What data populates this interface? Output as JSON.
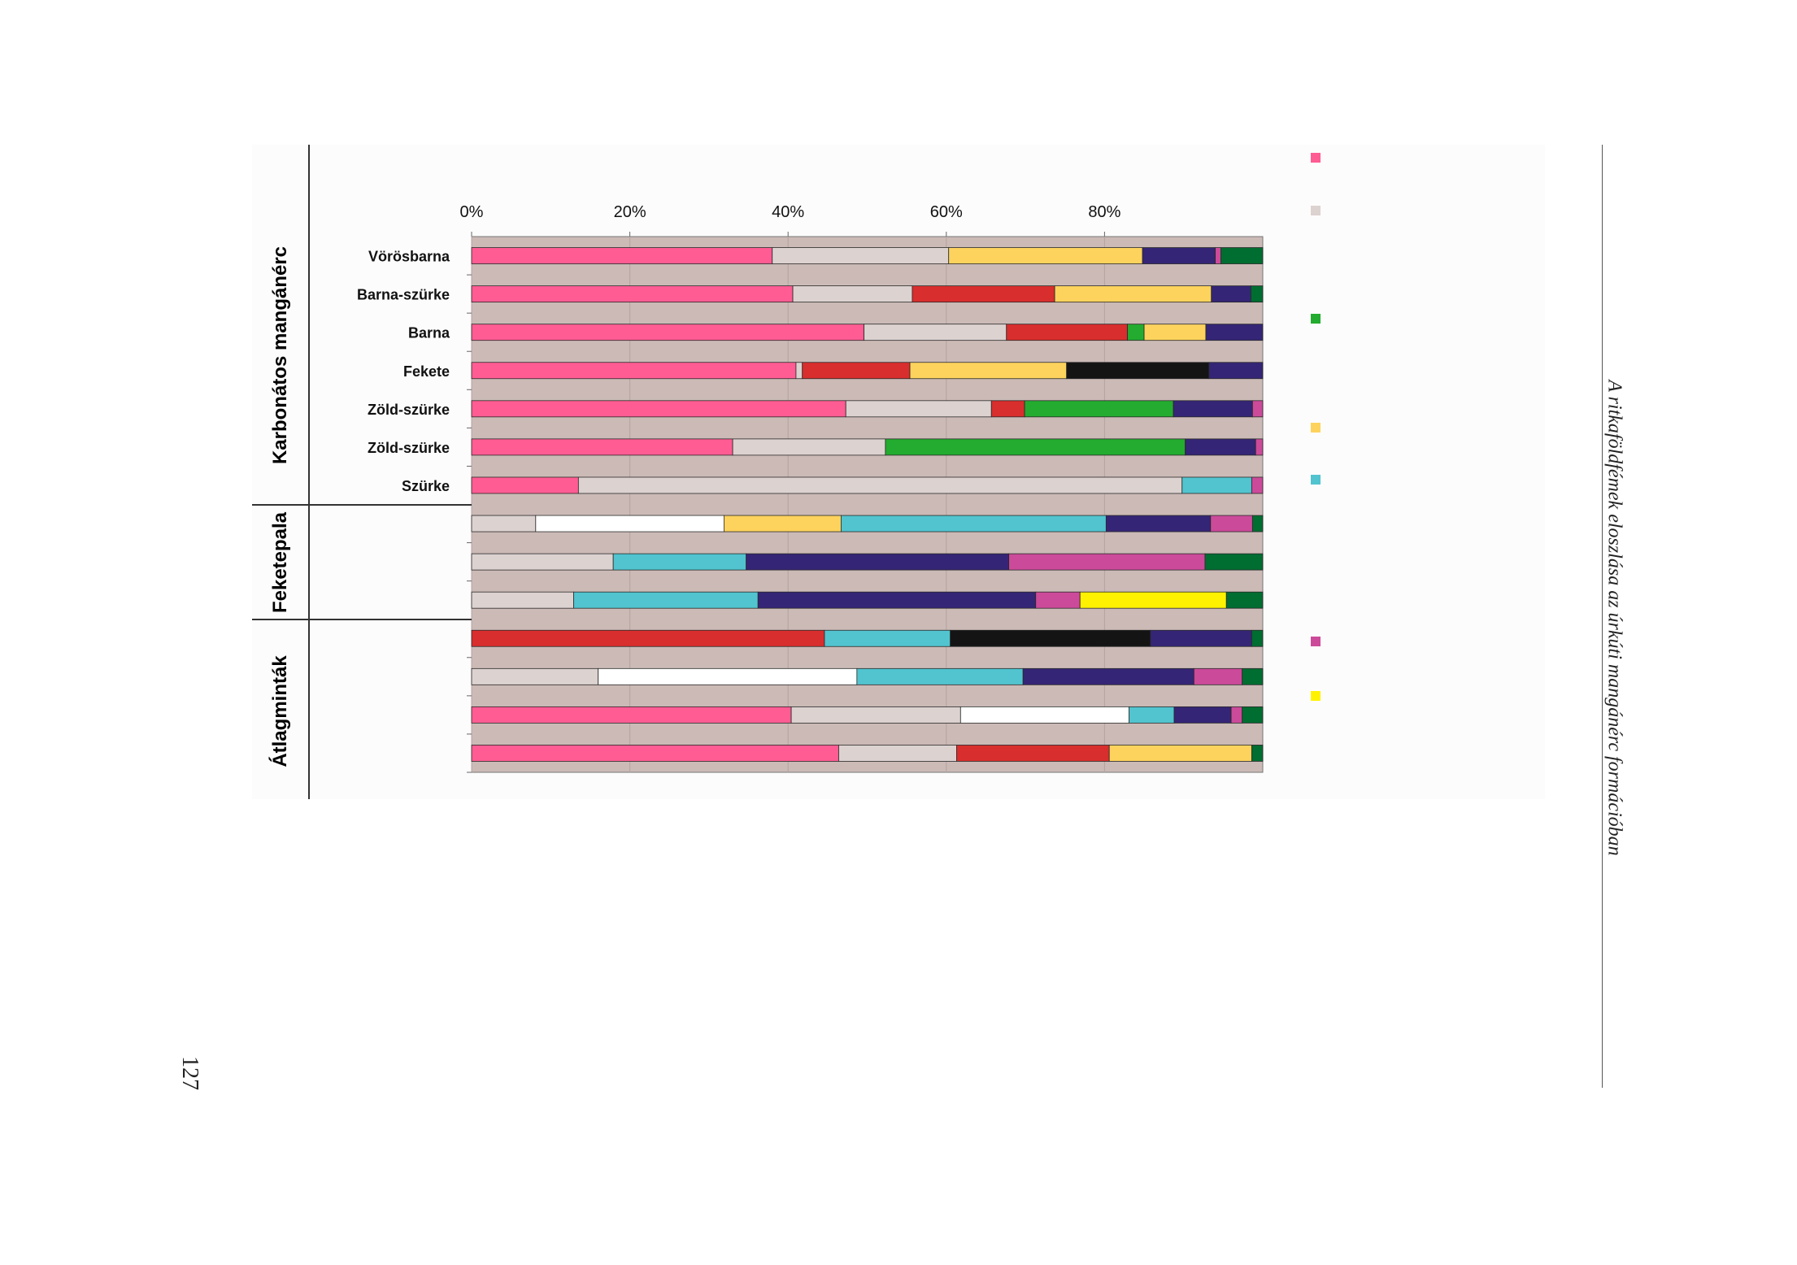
{
  "page": {
    "page_number": "127",
    "running_head": "A ritkaföldfémek eloszlása az úrkúti mangánérc formációban"
  },
  "groups": [
    {
      "label": "Karbonátos mangánérc"
    },
    {
      "label": "Feketepala"
    },
    {
      "label": "Átlagminták"
    }
  ],
  "legend": {
    "colors": [
      "#ff5c93",
      "#dcd2d0",
      "#23ac2f",
      "#fdd35d",
      "#51c4cf",
      "#cc4a9a",
      "#fff200"
    ]
  },
  "chart_data": {
    "type": "bar",
    "orientation": "horizontal",
    "stacked": "percent",
    "xlim": [
      0,
      100
    ],
    "xticks": [
      "0%",
      "20%",
      "40%",
      "60%",
      "80%"
    ],
    "grid": true,
    "plot_background": "#cbbab6",
    "categories": [
      "Vörösbarna",
      "Barna-szürke",
      "Barna",
      "Fekete",
      "Zöld-szürke",
      "Zöld-szürke",
      "Szürke",
      "",
      "",
      "",
      "",
      "",
      "",
      ""
    ],
    "rows": [
      {
        "segments": [
          {
            "color": "#ff5c93",
            "value": 38
          },
          {
            "color": "#dcd2d0",
            "value": 22.3
          },
          {
            "color": "#fdd35d",
            "value": 24.5
          },
          {
            "color": "#352576",
            "value": 9.2
          },
          {
            "color": "#cc4a9a",
            "value": 0.7
          },
          {
            "color": "#006d31",
            "value": 5.3
          }
        ]
      },
      {
        "segments": [
          {
            "color": "#ff5c93",
            "value": 40.6
          },
          {
            "color": "#dcd2d0",
            "value": 15.1
          },
          {
            "color": "#d82e2d",
            "value": 18
          },
          {
            "color": "#fdd35d",
            "value": 19.8
          },
          {
            "color": "#352576",
            "value": 5
          },
          {
            "color": "#006d31",
            "value": 1.5
          }
        ]
      },
      {
        "segments": [
          {
            "color": "#ff5c93",
            "value": 49.6
          },
          {
            "color": "#dcd2d0",
            "value": 18
          },
          {
            "color": "#d82e2d",
            "value": 15.3
          },
          {
            "color": "#23ac2f",
            "value": 2.1
          },
          {
            "color": "#fdd35d",
            "value": 7.8
          },
          {
            "color": "#352576",
            "value": 7.2
          }
        ]
      },
      {
        "segments": [
          {
            "color": "#ff5c93",
            "value": 41
          },
          {
            "color": "#dcd2d0",
            "value": 0.8
          },
          {
            "color": "#d82e2d",
            "value": 13.6
          },
          {
            "color": "#fdd35d",
            "value": 19.8
          },
          {
            "color": "#141414",
            "value": 18
          },
          {
            "color": "#352576",
            "value": 6.8
          }
        ]
      },
      {
        "segments": [
          {
            "color": "#ff5c93",
            "value": 47.3
          },
          {
            "color": "#dcd2d0",
            "value": 18.4
          },
          {
            "color": "#d82e2d",
            "value": 4.2
          },
          {
            "color": "#23ac2f",
            "value": 18.8
          },
          {
            "color": "#352576",
            "value": 10
          },
          {
            "color": "#cc4a9a",
            "value": 1.3
          }
        ]
      },
      {
        "segments": [
          {
            "color": "#ff5c93",
            "value": 33
          },
          {
            "color": "#dcd2d0",
            "value": 19.3
          },
          {
            "color": "#23ac2f",
            "value": 37.9
          },
          {
            "color": "#352576",
            "value": 8.9
          },
          {
            "color": "#cc4a9a",
            "value": 0.9
          }
        ]
      },
      {
        "segments": [
          {
            "color": "#ff5c93",
            "value": 13.5
          },
          {
            "color": "#dcd2d0",
            "value": 76.3
          },
          {
            "color": "#51c4cf",
            "value": 8.8
          },
          {
            "color": "#cc4a9a",
            "value": 1.4
          }
        ]
      },
      {
        "segments": [
          {
            "color": "#dcd2d0",
            "value": 8.1
          },
          {
            "color": "#ffffff",
            "value": 23.8
          },
          {
            "color": "#fdd35d",
            "value": 14.8
          },
          {
            "color": "#51c4cf",
            "value": 33.5
          },
          {
            "color": "#352576",
            "value": 13.2
          },
          {
            "color": "#cc4a9a",
            "value": 5.3
          },
          {
            "color": "#006d31",
            "value": 1.3
          }
        ]
      },
      {
        "segments": [
          {
            "color": "#dcd2d0",
            "value": 17.9
          },
          {
            "color": "#51c4cf",
            "value": 16.8
          },
          {
            "color": "#352576",
            "value": 33.2
          },
          {
            "color": "#cc4a9a",
            "value": 24.8
          },
          {
            "color": "#006d31",
            "value": 7.3
          }
        ]
      },
      {
        "segments": [
          {
            "color": "#dcd2d0",
            "value": 12.9
          },
          {
            "color": "#51c4cf",
            "value": 23.3
          },
          {
            "color": "#352576",
            "value": 35.1
          },
          {
            "color": "#cc4a9a",
            "value": 5.6
          },
          {
            "color": "#fff200",
            "value": 18.5
          },
          {
            "color": "#006d31",
            "value": 4.6
          }
        ]
      },
      {
        "segments": [
          {
            "color": "#d82e2d",
            "value": 44.6
          },
          {
            "color": "#51c4cf",
            "value": 15.9
          },
          {
            "color": "#141414",
            "value": 25.3
          },
          {
            "color": "#352576",
            "value": 12.8
          },
          {
            "color": "#006d31",
            "value": 1.4
          }
        ]
      },
      {
        "segments": [
          {
            "color": "#dcd2d0",
            "value": 16
          },
          {
            "color": "#ffffff",
            "value": 32.7
          },
          {
            "color": "#51c4cf",
            "value": 21
          },
          {
            "color": "#352576",
            "value": 21.6
          },
          {
            "color": "#cc4a9a",
            "value": 6.1
          },
          {
            "color": "#006d31",
            "value": 2.6
          }
        ]
      },
      {
        "segments": [
          {
            "color": "#ff5c93",
            "value": 40.4
          },
          {
            "color": "#dcd2d0",
            "value": 21.4
          },
          {
            "color": "#ffffff",
            "value": 21.3
          },
          {
            "color": "#51c4cf",
            "value": 5.7
          },
          {
            "color": "#352576",
            "value": 7.2
          },
          {
            "color": "#cc4a9a",
            "value": 1.4
          },
          {
            "color": "#006d31",
            "value": 2.6
          }
        ]
      },
      {
        "segments": [
          {
            "color": "#ff5c93",
            "value": 46.4
          },
          {
            "color": "#dcd2d0",
            "value": 14.9
          },
          {
            "color": "#d82e2d",
            "value": 19.3
          },
          {
            "color": "#fdd35d",
            "value": 18
          },
          {
            "color": "#006d31",
            "value": 1.4
          }
        ]
      }
    ]
  }
}
